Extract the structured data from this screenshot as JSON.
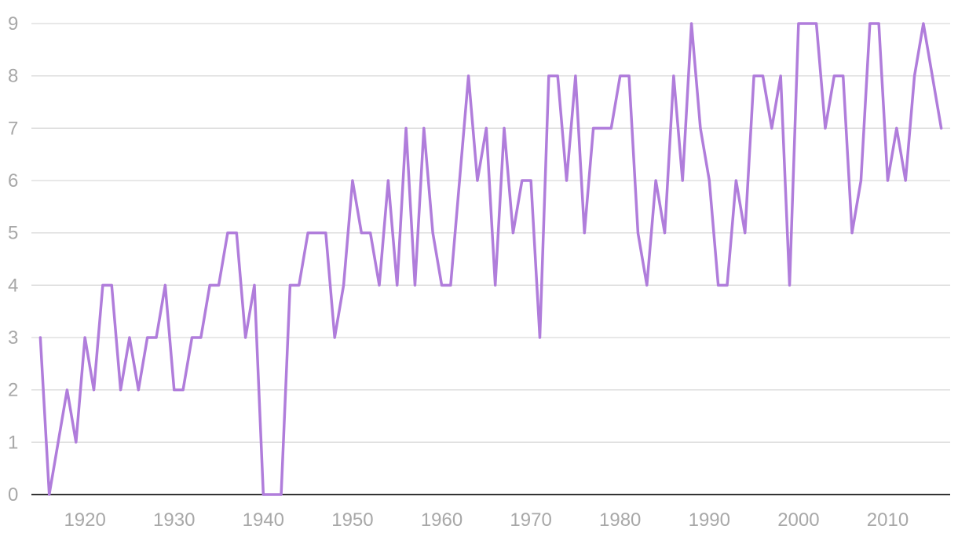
{
  "chart_data": {
    "type": "line",
    "title": "",
    "xlabel": "",
    "ylabel": "",
    "xlim": [
      1914,
      2017
    ],
    "ylim": [
      0,
      9
    ],
    "y_ticks": [
      "0",
      "1",
      "2",
      "3",
      "4",
      "5",
      "6",
      "7",
      "8",
      "9"
    ],
    "x_ticks": [
      "1920",
      "1930",
      "1940",
      "1950",
      "1960",
      "1970",
      "1980",
      "1990",
      "2000",
      "2010"
    ],
    "grid": true,
    "legend": "none",
    "colors": {
      "line": "#b07ddb",
      "grid": "#d9d9d9",
      "baseline": "#333333",
      "ticks": "#a8a8a8"
    },
    "series": [
      {
        "x": [
          1915,
          1916,
          1917,
          1918,
          1919,
          1920,
          1921,
          1922,
          1923,
          1924,
          1925,
          1926,
          1927,
          1928,
          1929,
          1930,
          1931,
          1932,
          1933,
          1934,
          1935,
          1936,
          1937,
          1938,
          1939,
          1940,
          1941,
          1942,
          1943,
          1944,
          1945,
          1946,
          1947,
          1948,
          1949,
          1950,
          1951,
          1952,
          1953,
          1954,
          1955,
          1956,
          1957,
          1958,
          1959,
          1960,
          1961,
          1962,
          1963,
          1964,
          1965,
          1966,
          1967,
          1968,
          1969,
          1970,
          1971,
          1972,
          1973,
          1974,
          1975,
          1976,
          1977,
          1978,
          1979,
          1980,
          1981,
          1982,
          1983,
          1984,
          1985,
          1986,
          1987,
          1988,
          1989,
          1990,
          1991,
          1992,
          1993,
          1994,
          1995,
          1996,
          1997,
          1998,
          1999,
          2000,
          2001,
          2002,
          2003,
          2004,
          2005,
          2006,
          2007,
          2008,
          2009,
          2010,
          2011,
          2012,
          2013,
          2014,
          2015,
          2016
        ],
        "values": [
          3,
          0,
          1,
          2,
          1,
          3,
          2,
          4,
          4,
          2,
          3,
          2,
          3,
          3,
          4,
          2,
          2,
          3,
          3,
          4,
          4,
          5,
          5,
          3,
          4,
          0,
          0,
          0,
          4,
          4,
          5,
          5,
          5,
          3,
          4,
          6,
          5,
          5,
          4,
          6,
          4,
          7,
          4,
          7,
          5,
          4,
          4,
          6,
          8,
          6,
          7,
          4,
          7,
          5,
          6,
          6,
          3,
          8,
          8,
          6,
          8,
          5,
          7,
          7,
          7,
          8,
          8,
          5,
          4,
          6,
          5,
          8,
          6,
          9,
          7,
          6,
          4,
          4,
          6,
          5,
          8,
          8,
          7,
          8,
          4,
          9,
          9,
          9,
          7,
          8,
          8,
          5,
          6,
          9,
          9,
          6,
          7,
          6,
          8,
          9,
          8,
          7
        ]
      }
    ]
  }
}
